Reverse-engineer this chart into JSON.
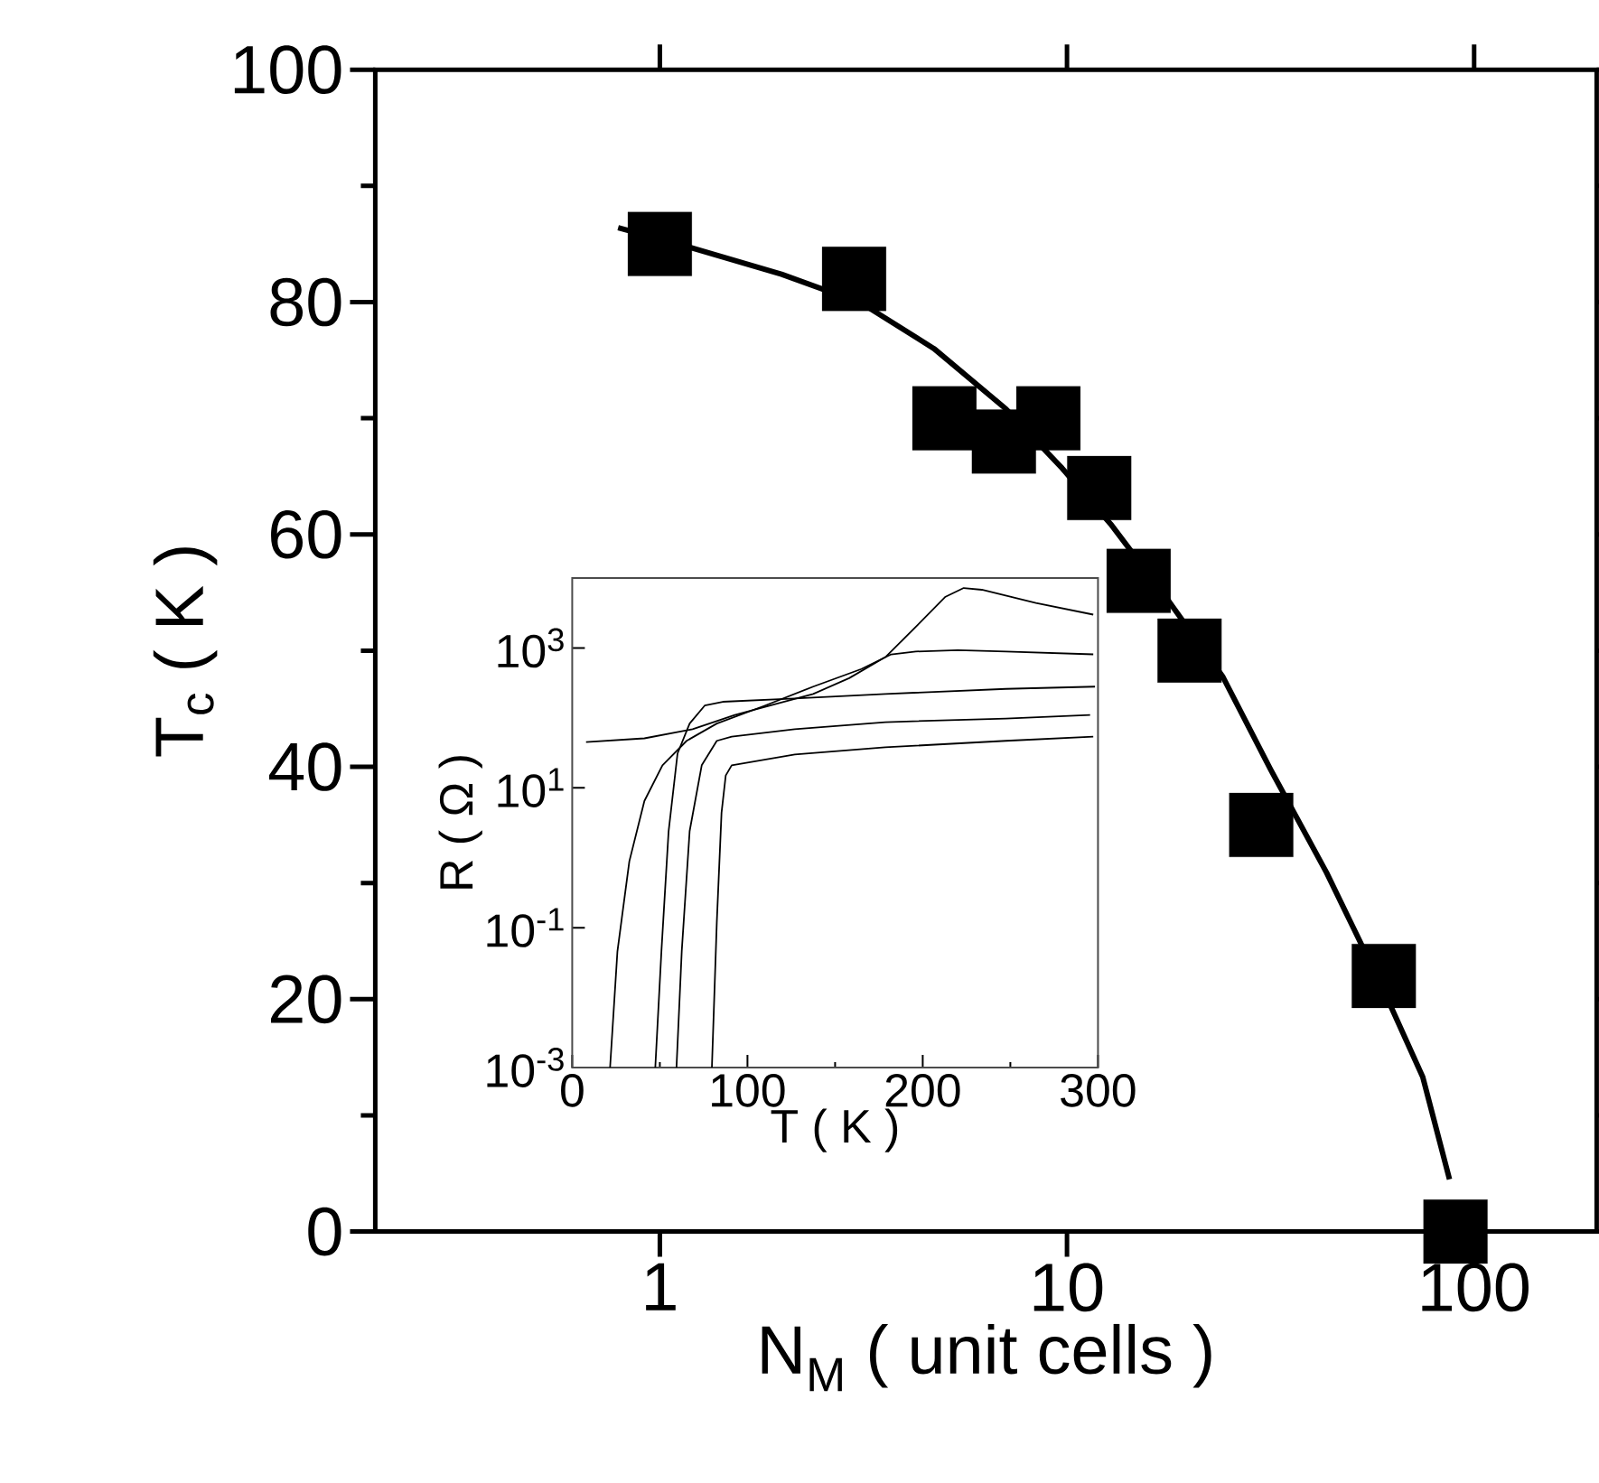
{
  "chart_data": [
    {
      "type": "scatter",
      "xlabel": "N$_{M}$ ( unit cells )",
      "ylabel": "T$_{c}$ ( K )",
      "log": "x",
      "xlim": [
        0.2,
        200
      ],
      "xticks": [
        1,
        10,
        100
      ],
      "ylim": [
        0,
        100
      ],
      "yticks": [
        0,
        20,
        40,
        60,
        80,
        100
      ],
      "series": [
        {
          "type": "scatter",
          "marker": "square",
          "color": "#000000",
          "x": [
            1,
            3,
            5,
            7,
            9,
            12,
            15,
            20,
            30,
            60,
            90
          ],
          "values": [
            85,
            82,
            70,
            68,
            70,
            64,
            56,
            50,
            35,
            22,
            0
          ]
        },
        {
          "type": "line",
          "marker": "none",
          "color": "#000000",
          "x": [
            0.79,
            1.16,
            1.99,
            3.13,
            4.71,
            7.08,
            9.73,
            12.8,
            17.5,
            24.1,
            31.6,
            43.4,
            59.7,
            74.8,
            87
          ],
          "values": [
            86.4,
            84.8,
            82.4,
            79.9,
            76.0,
            70.8,
            65.7,
            60.9,
            54.6,
            47.8,
            39.8,
            30.9,
            20.9,
            13.3,
            4.5
          ]
        }
      ]
    },
    {
      "type": "line",
      "xlabel": "T ( K )",
      "ylabel": "R ( Ω )",
      "log": "y",
      "xlim": [
        0,
        300
      ],
      "xticks": [
        0,
        100,
        200,
        300
      ],
      "ylim": [
        0.001,
        10000
      ],
      "yticks": [
        {
          "value": 0.001,
          "label": "10$^{-3}$"
        },
        {
          "value": 0.1,
          "label": "10$^{-1}$"
        },
        {
          "value": 10,
          "label": "10$^{1}$"
        },
        {
          "value": 1000,
          "label": "10$^{3}$"
        }
      ],
      "series": [
        {
          "color": "#000000",
          "x": [
            7.9,
            41.2,
            68.7,
            92.8,
            116.8,
            137.5,
            158,
            178.7,
            196,
            213,
            223.4,
            233.7,
            264.6,
            297.3
          ],
          "values": [
            45,
            51,
            69,
            110,
            160,
            220,
            370,
            740,
            2000,
            5400,
            7200,
            6800,
            4400,
            3000
          ]
        },
        {
          "color": "#000000",
          "x": [
            21.6,
            25.8,
            32.6,
            41.2,
            51.5,
            65.3,
            82.5,
            110,
            137.5,
            165,
            182,
            196,
            220,
            247.4,
            297.3
          ],
          "values": [
            0.001,
            0.046,
            0.89,
            6.5,
            21,
            47,
            83,
            150,
            280,
            500,
            810,
            890,
            930,
            890,
            810
          ]
        },
        {
          "color": "#000000",
          "x": [
            47.4,
            50.9,
            55,
            60.1,
            67,
            75.6,
            85.9,
            127,
            178.7,
            247.4,
            298.3
          ],
          "values": [
            0.001,
            0.046,
            2.4,
            31,
            83,
            150,
            170,
            190,
            220,
            260,
            280
          ]
        },
        {
          "color": "#000000",
          "x": [
            59.5,
            62.5,
            67,
            73.9,
            82.5,
            91,
            127,
            178.7,
            247.4,
            295.5
          ],
          "values": [
            0.001,
            0.046,
            2.4,
            21,
            47,
            54,
            69,
            87,
            98,
            110
          ]
        },
        {
          "color": "#000000",
          "x": [
            79.7,
            82.5,
            85.2,
            87.6,
            91,
            127,
            178.7,
            247.4,
            297.3
          ],
          "values": [
            0.001,
            0.12,
            4.4,
            15,
            21,
            30,
            38,
            47,
            54
          ]
        }
      ]
    }
  ]
}
